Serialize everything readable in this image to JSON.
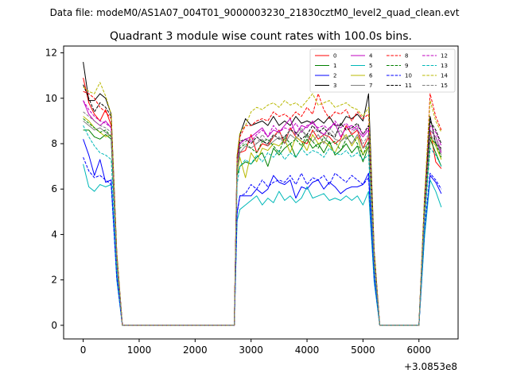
{
  "suptitle": "Data file: modeM0/AS1A07_004T01_9000003230_21830cztM0_level2_quad_clean.evt",
  "chart_data": {
    "type": "line",
    "title": "Quadrant 3 module wise count rates with 100.0s bins.",
    "xlabel": "",
    "ylabel": "",
    "x_offset_label": "+3.0853e8",
    "xlim": [
      -350,
      6700
    ],
    "ylim": [
      -0.6,
      12.3
    ],
    "xticks": [
      0,
      1000,
      2000,
      3000,
      4000,
      5000,
      6000
    ],
    "yticks": [
      0,
      2,
      4,
      6,
      8,
      10,
      12
    ],
    "legend_position": "top-right",
    "legend_columns": 4,
    "x": [
      0,
      100,
      200,
      300,
      400,
      500,
      600,
      700,
      800,
      900,
      1000,
      1100,
      1200,
      1300,
      1400,
      1500,
      1600,
      1700,
      1800,
      1900,
      2000,
      2100,
      2200,
      2300,
      2400,
      2500,
      2600,
      2700,
      2750,
      2800,
      2900,
      3000,
      3100,
      3200,
      3300,
      3400,
      3500,
      3600,
      3700,
      3800,
      3900,
      4000,
      4100,
      4200,
      4300,
      4400,
      4500,
      4600,
      4700,
      4800,
      4900,
      5000,
      5100,
      5200,
      5300,
      5400,
      5500,
      5600,
      5700,
      5800,
      5900,
      6000,
      6100,
      6200,
      6300,
      6400
    ],
    "series": [
      {
        "name": "0",
        "color": "#ff0000",
        "dash": false,
        "values": [
          10.9,
          9.8,
          9.3,
          9.0,
          9.5,
          8.8,
          3.0,
          0,
          0,
          0,
          0,
          0,
          0,
          0,
          0,
          0,
          0,
          0,
          0,
          0,
          0,
          0,
          0,
          0,
          0,
          0,
          0,
          0,
          6.9,
          7.6,
          7.7,
          8.4,
          7.6,
          8.0,
          7.9,
          8.3,
          8.6,
          8.0,
          8.7,
          8.3,
          8.1,
          8.0,
          8.6,
          8.2,
          8.4,
          8.3,
          8.0,
          8.2,
          8.8,
          8.4,
          8.6,
          7.8,
          8.3,
          3.0,
          0,
          0,
          0,
          0,
          0,
          0,
          0,
          0,
          4.9,
          8.6,
          7.2,
          6.9
        ]
      },
      {
        "name": "1",
        "color": "#008000",
        "dash": false,
        "values": [
          8.6,
          8.6,
          8.3,
          8.2,
          8.4,
          8.2,
          2.8,
          0,
          0,
          0,
          0,
          0,
          0,
          0,
          0,
          0,
          0,
          0,
          0,
          0,
          0,
          0,
          0,
          0,
          0,
          0,
          0,
          0,
          6.6,
          7.0,
          7.2,
          7.1,
          7.4,
          7.6,
          7.0,
          7.8,
          7.5,
          7.8,
          8.0,
          7.4,
          7.8,
          8.2,
          7.8,
          8.0,
          7.6,
          8.1,
          7.5,
          7.7,
          8.0,
          7.6,
          7.9,
          7.2,
          7.9,
          2.7,
          0,
          0,
          0,
          0,
          0,
          0,
          0,
          0,
          4.7,
          8.2,
          7.6,
          7.0
        ]
      },
      {
        "name": "2",
        "color": "#0000ff",
        "dash": false,
        "values": [
          8.2,
          7.5,
          6.6,
          7.3,
          6.3,
          6.4,
          2.2,
          0,
          0,
          0,
          0,
          0,
          0,
          0,
          0,
          0,
          0,
          0,
          0,
          0,
          0,
          0,
          0,
          0,
          0,
          0,
          0,
          0,
          5.0,
          5.7,
          5.7,
          5.7,
          6.0,
          5.8,
          6.0,
          6.6,
          6.3,
          6.2,
          6.4,
          5.6,
          6.1,
          6.0,
          6.3,
          6.4,
          6.0,
          6.3,
          6.1,
          5.8,
          6.0,
          6.1,
          6.1,
          6.2,
          6.7,
          2.1,
          0,
          0,
          0,
          0,
          0,
          0,
          0,
          0,
          4.0,
          6.6,
          6.3,
          5.8
        ]
      },
      {
        "name": "3",
        "color": "#000000",
        "dash": false,
        "values": [
          11.6,
          9.9,
          9.9,
          10.2,
          10.0,
          9.3,
          3.2,
          0,
          0,
          0,
          0,
          0,
          0,
          0,
          0,
          0,
          0,
          0,
          0,
          0,
          0,
          0,
          0,
          0,
          0,
          0,
          0,
          0,
          7.4,
          8.4,
          9.1,
          8.8,
          8.9,
          9.0,
          8.8,
          9.2,
          8.8,
          9.0,
          8.8,
          9.2,
          8.9,
          9.0,
          8.9,
          9.1,
          8.9,
          9.2,
          8.8,
          8.8,
          9.2,
          9.1,
          9.3,
          9.0,
          10.2,
          3.3,
          0,
          0,
          0,
          0,
          0,
          0,
          0,
          0,
          5.6,
          9.2,
          8.0,
          7.8
        ]
      },
      {
        "name": "4",
        "color": "#c000c0",
        "dash": false,
        "values": [
          9.9,
          9.3,
          9.0,
          8.8,
          9.0,
          8.7,
          3.0,
          0,
          0,
          0,
          0,
          0,
          0,
          0,
          0,
          0,
          0,
          0,
          0,
          0,
          0,
          0,
          0,
          0,
          0,
          0,
          0,
          0,
          7.2,
          8.0,
          8.2,
          8.3,
          8.5,
          8.7,
          8.3,
          8.6,
          8.5,
          8.8,
          9.1,
          8.4,
          8.8,
          8.7,
          9.0,
          8.6,
          8.4,
          8.7,
          8.9,
          8.3,
          8.7,
          8.8,
          8.6,
          8.3,
          8.6,
          3.0,
          0,
          0,
          0,
          0,
          0,
          0,
          0,
          0,
          5.0,
          8.6,
          8.3,
          7.6
        ]
      },
      {
        "name": "5",
        "color": "#00b8b8",
        "dash": false,
        "values": [
          7.1,
          6.1,
          5.9,
          6.2,
          6.1,
          6.2,
          2.0,
          0,
          0,
          0,
          0,
          0,
          0,
          0,
          0,
          0,
          0,
          0,
          0,
          0,
          0,
          0,
          0,
          0,
          0,
          0,
          0,
          0,
          4.6,
          5.1,
          5.3,
          5.5,
          5.7,
          5.3,
          5.6,
          5.4,
          5.9,
          5.5,
          5.7,
          5.4,
          5.6,
          6.1,
          5.6,
          5.7,
          5.8,
          5.5,
          5.6,
          5.5,
          5.7,
          5.5,
          5.7,
          5.3,
          5.9,
          1.9,
          0,
          0,
          0,
          0,
          0,
          0,
          0,
          0,
          3.9,
          6.4,
          5.9,
          5.2
        ]
      },
      {
        "name": "6",
        "color": "#b8b800",
        "dash": false,
        "values": [
          9.2,
          9.0,
          8.7,
          8.5,
          8.3,
          8.4,
          2.9,
          0,
          0,
          0,
          0,
          0,
          0,
          0,
          0,
          0,
          0,
          0,
          0,
          0,
          0,
          0,
          0,
          0,
          0,
          0,
          0,
          0,
          6.7,
          7.4,
          6.5,
          7.6,
          7.2,
          7.8,
          7.7,
          8.0,
          7.9,
          8.2,
          7.6,
          8.3,
          8.1,
          7.7,
          8.4,
          8.0,
          8.1,
          7.9,
          7.6,
          8.1,
          8.4,
          7.9,
          8.3,
          7.5,
          7.9,
          2.8,
          0,
          0,
          0,
          0,
          0,
          0,
          0,
          0,
          4.9,
          8.3,
          7.9,
          7.3
        ]
      },
      {
        "name": "7",
        "color": "#808080",
        "dash": false,
        "values": [
          9.0,
          8.8,
          8.6,
          8.7,
          8.5,
          8.3,
          2.9,
          0,
          0,
          0,
          0,
          0,
          0,
          0,
          0,
          0,
          0,
          0,
          0,
          0,
          0,
          0,
          0,
          0,
          0,
          0,
          0,
          0,
          6.8,
          7.6,
          7.9,
          7.8,
          8.0,
          8.2,
          7.9,
          8.1,
          8.3,
          8.0,
          8.4,
          8.2,
          8.6,
          8.3,
          8.1,
          8.4,
          8.0,
          8.5,
          8.2,
          8.1,
          8.3,
          8.0,
          8.4,
          7.8,
          8.0,
          2.8,
          0,
          0,
          0,
          0,
          0,
          0,
          0,
          0,
          4.8,
          8.4,
          8.1,
          7.5
        ]
      },
      {
        "name": "8",
        "color": "#ff0000",
        "dash": true,
        "values": [
          10.3,
          10.2,
          10.0,
          9.6,
          9.4,
          9.1,
          3.1,
          0,
          0,
          0,
          0,
          0,
          0,
          0,
          0,
          0,
          0,
          0,
          0,
          0,
          0,
          0,
          0,
          0,
          0,
          0,
          0,
          0,
          7.3,
          8.3,
          8.8,
          8.8,
          9.0,
          9.1,
          9.0,
          9.4,
          9.2,
          9.3,
          9.1,
          9.4,
          9.2,
          9.6,
          9.3,
          10.2,
          9.5,
          9.1,
          9.4,
          9.3,
          9.5,
          9.0,
          9.4,
          9.1,
          9.3,
          3.2,
          0,
          0,
          0,
          0,
          0,
          0,
          0,
          0,
          5.5,
          10.2,
          9.2,
          8.6
        ]
      },
      {
        "name": "9",
        "color": "#008000",
        "dash": true,
        "values": [
          9.1,
          8.9,
          8.7,
          8.5,
          8.6,
          8.3,
          2.9,
          0,
          0,
          0,
          0,
          0,
          0,
          0,
          0,
          0,
          0,
          0,
          0,
          0,
          0,
          0,
          0,
          0,
          0,
          0,
          0,
          0,
          6.9,
          7.8,
          8.0,
          7.8,
          7.6,
          8.1,
          8.2,
          7.9,
          7.6,
          8.3,
          8.0,
          8.2,
          7.9,
          8.4,
          8.1,
          7.8,
          8.3,
          8.0,
          8.1,
          7.7,
          8.2,
          8.4,
          8.0,
          7.5,
          8.1,
          2.8,
          0,
          0,
          0,
          0,
          0,
          0,
          0,
          0,
          4.8,
          8.3,
          8.0,
          7.4
        ]
      },
      {
        "name": "10",
        "color": "#0000ff",
        "dash": true,
        "values": [
          7.4,
          6.8,
          6.5,
          6.6,
          6.4,
          6.2,
          2.1,
          0,
          0,
          0,
          0,
          0,
          0,
          0,
          0,
          0,
          0,
          0,
          0,
          0,
          0,
          0,
          0,
          0,
          0,
          0,
          0,
          0,
          4.9,
          5.7,
          5.8,
          6.2,
          6.0,
          6.4,
          6.1,
          6.3,
          6.4,
          6.3,
          6.6,
          6.2,
          6.7,
          6.2,
          6.5,
          6.4,
          6.6,
          6.2,
          6.7,
          6.5,
          6.3,
          6.6,
          6.4,
          6.2,
          6.5,
          2.1,
          0,
          0,
          0,
          0,
          0,
          0,
          0,
          0,
          4.2,
          6.7,
          6.4,
          6.0
        ]
      },
      {
        "name": "11",
        "color": "#000000",
        "dash": true,
        "values": [
          10.6,
          10.0,
          9.4,
          9.8,
          9.6,
          9.2,
          3.1,
          0,
          0,
          0,
          0,
          0,
          0,
          0,
          0,
          0,
          0,
          0,
          0,
          0,
          0,
          0,
          0,
          0,
          0,
          0,
          0,
          0,
          7.2,
          8.1,
          8.2,
          8.0,
          8.3,
          8.1,
          8.0,
          8.4,
          8.2,
          8.3,
          8.6,
          8.5,
          8.2,
          8.4,
          8.8,
          8.5,
          8.7,
          8.4,
          8.3,
          8.9,
          8.6,
          8.7,
          8.9,
          8.4,
          8.8,
          3.0,
          0,
          0,
          0,
          0,
          0,
          0,
          0,
          0,
          5.3,
          9.0,
          8.6,
          8.0
        ]
      },
      {
        "name": "12",
        "color": "#c000c0",
        "dash": true,
        "values": [
          9.9,
          9.5,
          9.2,
          9.0,
          8.9,
          8.7,
          3.0,
          0,
          0,
          0,
          0,
          0,
          0,
          0,
          0,
          0,
          0,
          0,
          0,
          0,
          0,
          0,
          0,
          0,
          0,
          0,
          0,
          0,
          7.1,
          8.0,
          8.2,
          8.1,
          8.4,
          8.6,
          8.3,
          8.8,
          8.5,
          8.7,
          8.6,
          8.9,
          8.5,
          8.8,
          8.9,
          8.7,
          8.8,
          8.6,
          9.0,
          8.7,
          8.9,
          8.6,
          8.8,
          8.4,
          8.7,
          3.0,
          0,
          0,
          0,
          0,
          0,
          0,
          0,
          0,
          5.1,
          8.8,
          8.5,
          7.9
        ]
      },
      {
        "name": "13",
        "color": "#00b8b8",
        "dash": true,
        "values": [
          8.8,
          8.3,
          7.9,
          7.6,
          7.5,
          7.3,
          2.5,
          0,
          0,
          0,
          0,
          0,
          0,
          0,
          0,
          0,
          0,
          0,
          0,
          0,
          0,
          0,
          0,
          0,
          0,
          0,
          0,
          0,
          6.2,
          7.0,
          7.3,
          7.1,
          7.5,
          7.2,
          7.6,
          7.4,
          7.7,
          7.3,
          7.6,
          7.4,
          7.8,
          7.5,
          7.7,
          7.6,
          7.4,
          7.8,
          7.6,
          7.5,
          7.7,
          7.4,
          7.6,
          7.3,
          7.5,
          2.5,
          0,
          0,
          0,
          0,
          0,
          0,
          0,
          0,
          4.5,
          7.8,
          7.5,
          7.0
        ]
      },
      {
        "name": "14",
        "color": "#b8b800",
        "dash": true,
        "values": [
          10.5,
          10.3,
          10.2,
          10.7,
          10.1,
          9.3,
          3.2,
          0,
          0,
          0,
          0,
          0,
          0,
          0,
          0,
          0,
          0,
          0,
          0,
          0,
          0,
          0,
          0,
          0,
          0,
          0,
          0,
          0,
          7.5,
          8.5,
          8.8,
          9.4,
          9.6,
          9.5,
          9.7,
          9.8,
          9.6,
          9.9,
          9.7,
          9.8,
          9.6,
          9.9,
          10.2,
          9.7,
          9.8,
          9.9,
          9.6,
          9.7,
          9.8,
          9.6,
          9.5,
          9.2,
          9.6,
          3.3,
          0,
          0,
          0,
          0,
          0,
          0,
          0,
          0,
          5.7,
          9.9,
          9.0,
          8.5
        ]
      },
      {
        "name": "15",
        "color": "#808080",
        "dash": true,
        "values": [
          9.4,
          9.2,
          9.0,
          8.8,
          8.7,
          8.5,
          2.9,
          0,
          0,
          0,
          0,
          0,
          0,
          0,
          0,
          0,
          0,
          0,
          0,
          0,
          0,
          0,
          0,
          0,
          0,
          0,
          0,
          0,
          6.9,
          7.9,
          8.1,
          8.2,
          8.0,
          8.4,
          8.1,
          8.3,
          8.5,
          8.2,
          8.6,
          8.4,
          8.7,
          8.3,
          8.5,
          8.6,
          8.3,
          8.7,
          8.4,
          8.6,
          8.2,
          8.5,
          8.7,
          8.0,
          8.4,
          2.9,
          0,
          0,
          0,
          0,
          0,
          0,
          0,
          0,
          5.0,
          8.6,
          8.3,
          7.7
        ]
      }
    ]
  }
}
